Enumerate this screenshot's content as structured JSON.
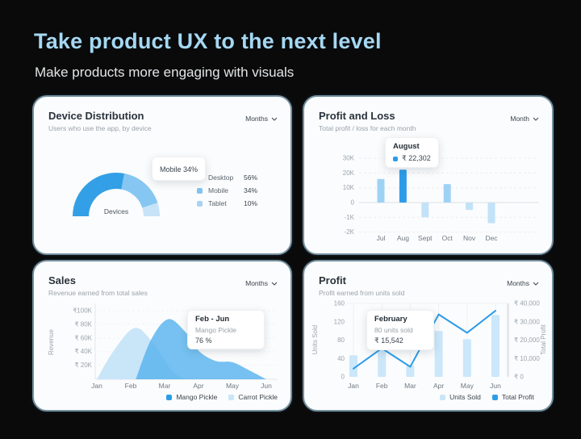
{
  "header": {
    "title": "Take product UX to the next level",
    "subtitle": "Make products more engaging with visuals"
  },
  "colors": {
    "background": "#0a0a0b",
    "hero_title": "#A5D8F3",
    "card_border": "#74909F",
    "accent_blue": "#2D9CE8",
    "light_blue": "#9ED2F5",
    "lighter_blue": "#C9E5F8"
  },
  "cards": [
    {
      "title": "Device Distribution",
      "subtitle": "Users who use the app, by device",
      "dropdown_label": "Months",
      "tooltip": {
        "text": "Mobile 34%"
      },
      "center_label": "Devices",
      "legend": [
        {
          "label": "Desktop",
          "value": "56%",
          "color": "#339FE6"
        },
        {
          "label": "Mobile",
          "value": "34%",
          "color": "#7FC3F0"
        },
        {
          "label": "Tablet",
          "value": "10%",
          "color": "#A9D3F2"
        }
      ]
    },
    {
      "title": "Profit and Loss",
      "subtitle": "Total profit / loss for each month",
      "dropdown_label": "Month",
      "tooltip": {
        "title": "August",
        "value": "₹ 22,302"
      }
    },
    {
      "title": "Sales",
      "subtitle": "Revenue earned from total sales",
      "dropdown_label": "Months",
      "tooltip": {
        "title": "Feb - Jun",
        "series": "Mango Pickle",
        "value": "76 %"
      },
      "legend": [
        {
          "label": "Mango Pickle",
          "color": "#2D9CE8"
        },
        {
          "label": "Carrot Pickle",
          "color": "#C9E5F8"
        }
      ]
    },
    {
      "title": "Profit",
      "subtitle": "Profit earned from units sold",
      "dropdown_label": "Months",
      "tooltip": {
        "title": "February",
        "line2": "80 units sold",
        "line3": "₹ 15,542"
      },
      "legend": [
        {
          "label": "Units Sold",
          "color": "#C9E5F8"
        },
        {
          "label": "Total Profit",
          "color": "#2D9CE8"
        }
      ]
    }
  ],
  "chart_data": [
    {
      "type": "pie",
      "variant": "semicircle-donut",
      "title": "Device Distribution",
      "categories": [
        "Desktop",
        "Mobile",
        "Tablet"
      ],
      "values": [
        56,
        34,
        10
      ],
      "unit": "%",
      "center_label": "Devices",
      "colors": [
        "#339FE6",
        "#85C6F2",
        "#C6E3F8"
      ],
      "legend_position": "right"
    },
    {
      "type": "bar",
      "title": "Profit and Loss",
      "categories": [
        "Jul",
        "Aug",
        "Sept",
        "Oct",
        "Nov",
        "Dec"
      ],
      "values": [
        16000,
        22302,
        -1000,
        12500,
        -500,
        -1400
      ],
      "highlight_index": 1,
      "highlight_label": "August",
      "highlight_value": "₹ 22,302",
      "ytick_labels": [
        "30K",
        "20K",
        "10K",
        "0",
        "-1K",
        "-2K"
      ],
      "grid": "dashed-horizontal",
      "currency": "₹"
    },
    {
      "type": "area",
      "title": "Sales",
      "xlabel": "",
      "ylabel": "Revenue",
      "x_categories": [
        "Jan",
        "Feb",
        "Mar",
        "Apr",
        "May",
        "Jun"
      ],
      "ytick_labels": [
        "₹100K",
        "₹ 80K",
        "₹ 60K",
        "₹ 40K",
        "₹ 20K"
      ],
      "ylim_k": [
        0,
        110
      ],
      "series": [
        {
          "name": "Carrot Pickle",
          "color": "#C9E5F8",
          "opacity": 1,
          "points_month_valueK": [
            [
              0,
              0
            ],
            [
              0.5,
              42
            ],
            [
              1.1,
              75
            ],
            [
              1.6,
              57
            ],
            [
              2.2,
              14
            ],
            [
              2.6,
              0
            ]
          ]
        },
        {
          "name": "Mango Pickle",
          "color": "#55B1EE",
          "opacity": 0.8,
          "points_month_valueK": [
            [
              1.15,
              0
            ],
            [
              1.6,
              58
            ],
            [
              2.1,
              88
            ],
            [
              2.6,
              70
            ],
            [
              3,
              42
            ],
            [
              3.5,
              27
            ],
            [
              4,
              25
            ],
            [
              4.5,
              13
            ],
            [
              5,
              0
            ]
          ]
        }
      ],
      "annotation": {
        "range": "Feb - Jun",
        "series": "Mango Pickle",
        "value": "76 %"
      }
    },
    {
      "type": "combo",
      "title": "Profit",
      "categories": [
        "Jan",
        "Feb",
        "Mar",
        "Apr",
        "May",
        "Jun"
      ],
      "bar_series": {
        "name": "Units Sold",
        "values": [
          47,
          80,
          25,
          100,
          82,
          135
        ],
        "color": "#CBE7F9"
      },
      "line_series": {
        "name": "Total Profit",
        "values": [
          4500,
          15542,
          5500,
          34000,
          24000,
          36000
        ],
        "color": "#2D9CE8"
      },
      "left_axis": {
        "label": "Units Sold",
        "ticks": [
          0,
          40,
          80,
          120,
          160
        ],
        "lim": [
          0,
          160
        ]
      },
      "right_axis": {
        "label": "Total Profit",
        "tick_labels": [
          "₹ 0",
          "₹ 10,000",
          "₹ 20,000",
          "₹ 30,000",
          "₹ 40,000"
        ],
        "lim": [
          0,
          40000
        ]
      },
      "grid": "vertical",
      "annotation": {
        "month": "February",
        "units": "80 units sold",
        "profit": "₹ 15,542"
      }
    }
  ]
}
